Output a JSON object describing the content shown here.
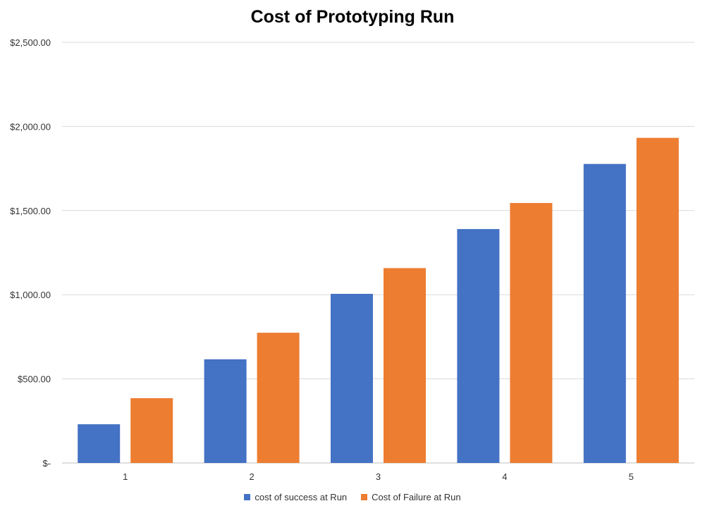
{
  "chart_data": {
    "type": "bar",
    "title": "Cost of Prototyping Run",
    "xlabel": "",
    "ylabel": "",
    "categories": [
      "1",
      "2",
      "3",
      "4",
      "5"
    ],
    "series": [
      {
        "name": "cost of success at Run",
        "color": "#4472C4",
        "values": [
          230,
          616,
          1005,
          1390,
          1777
        ]
      },
      {
        "name": "Cost of Failure at Run",
        "color": "#ED7D31",
        "values": [
          385,
          774,
          1158,
          1545,
          1932
        ]
      }
    ],
    "ylim": [
      0,
      2500
    ],
    "yticks": [
      0,
      500,
      1000,
      1500,
      2000,
      2500
    ],
    "ytick_labels": [
      "$-",
      "$500.00",
      "$1,000.00",
      "$1,500.00",
      "$2,000.00",
      "$2,500.00"
    ],
    "grid": true,
    "legend_position": "bottom"
  }
}
